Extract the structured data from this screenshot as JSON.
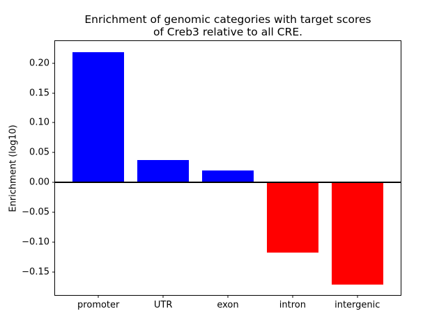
{
  "chart_data": {
    "type": "bar",
    "title": "Enrichment of genomic categories with target scores\nof Creb3 relative to all CRE.",
    "xlabel": "",
    "ylabel": "Enrichment (log10)",
    "categories": [
      "promoter",
      "UTR",
      "exon",
      "intron",
      "intergenic"
    ],
    "values": [
      0.218,
      0.037,
      0.02,
      -0.118,
      -0.172
    ],
    "positive_color": "#0000ff",
    "negative_color": "#ff0000",
    "ylim": [
      -0.189,
      0.237
    ],
    "xlim": [
      -0.67,
      4.67
    ],
    "bar_width": 0.8,
    "yticks": [
      0.2,
      0.15,
      0.1,
      0.05,
      0.0,
      -0.05,
      -0.1,
      -0.15
    ],
    "ytick_labels": [
      "0.20",
      "0.15",
      "0.10",
      "0.05",
      "0.00",
      "−0.05",
      "−0.10",
      "−0.15"
    ],
    "zero_line": true,
    "grid": false,
    "legend": null,
    "frame_color": "#000000",
    "background_color": "#ffffff"
  }
}
